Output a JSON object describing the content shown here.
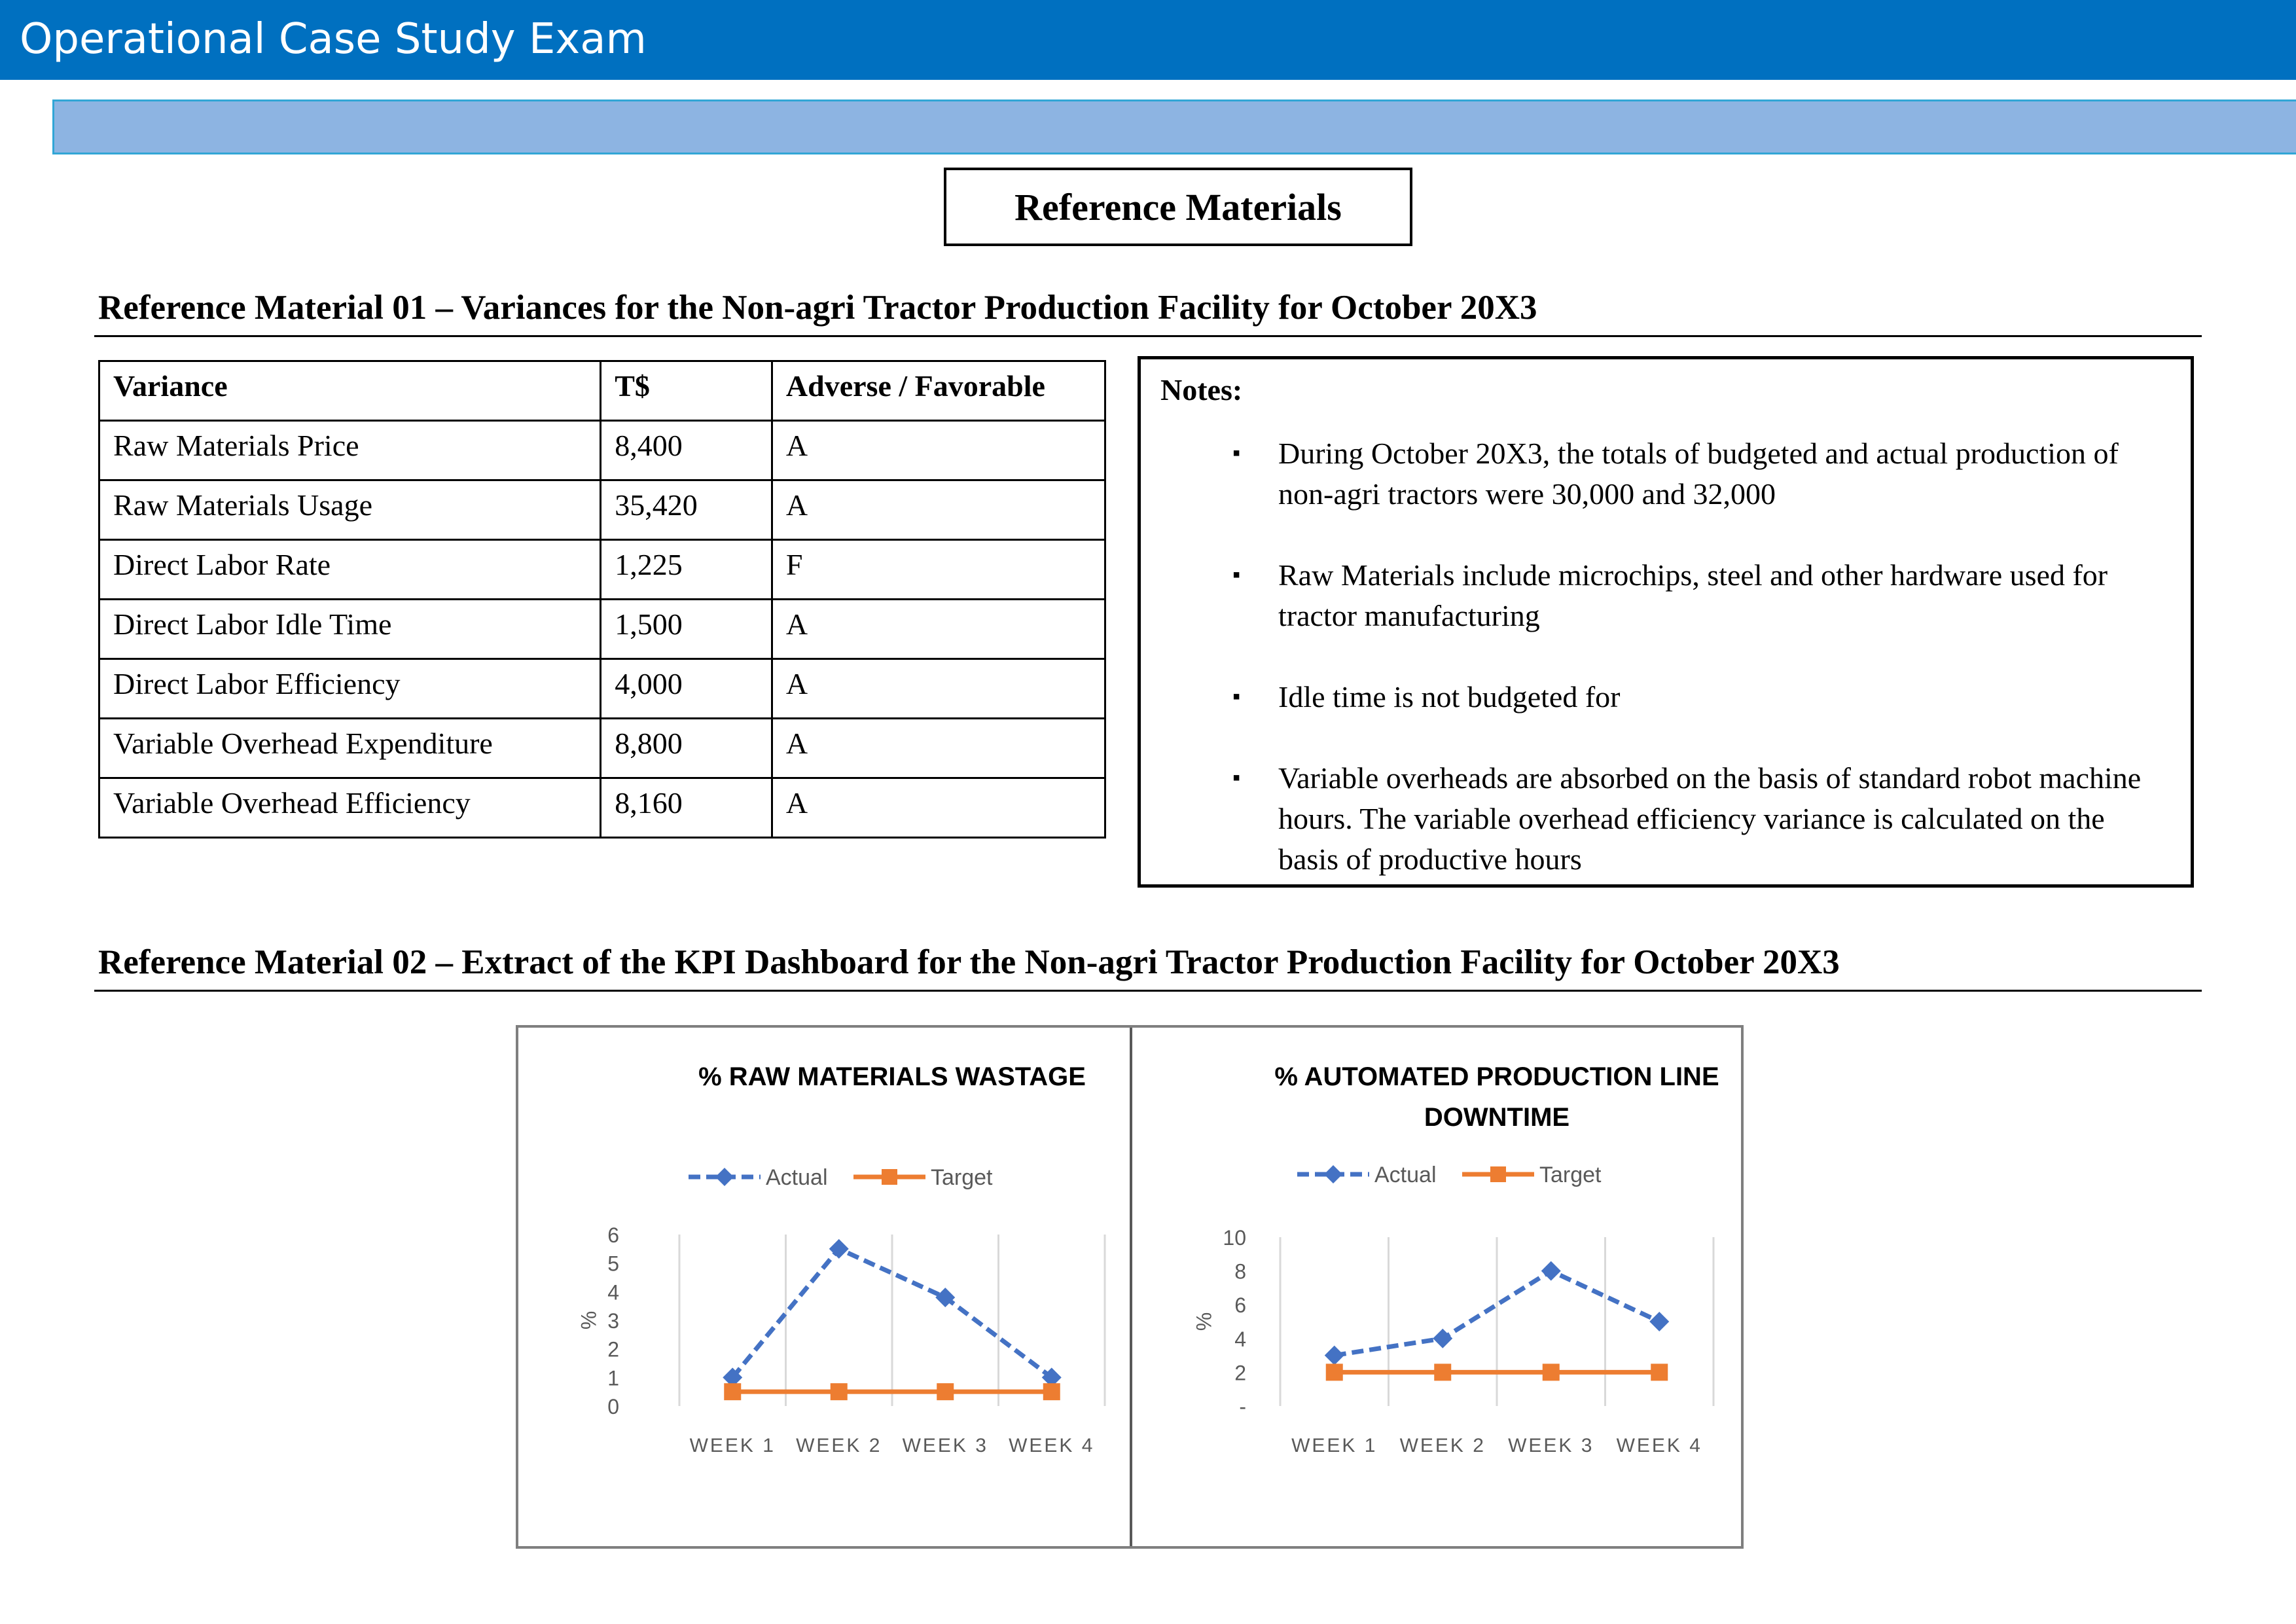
{
  "header": {
    "title": "Operational Case Study Exam"
  },
  "reference_box": {
    "label": "Reference Materials"
  },
  "section1": {
    "heading": "Reference Material 01 – Variances for the Non-agri Tractor Production Facility for October 20X3",
    "table": {
      "headers": [
        "Variance",
        "T$",
        "Adverse / Favorable"
      ],
      "rows": [
        [
          "Raw Materials Price",
          "8,400",
          "A"
        ],
        [
          "Raw Materials Usage",
          "35,420",
          "A"
        ],
        [
          "Direct Labor Rate",
          "1,225",
          "F"
        ],
        [
          "Direct Labor Idle Time",
          "1,500",
          "A"
        ],
        [
          "Direct Labor Efficiency",
          "4,000",
          "A"
        ],
        [
          "Variable Overhead Expenditure",
          "8,800",
          "A"
        ],
        [
          "Variable Overhead Efficiency",
          "8,160",
          "A"
        ]
      ]
    },
    "notes": {
      "title": "Notes:",
      "bullet": "▪",
      "items": [
        "During October 20X3, the totals of budgeted and actual production of non-agri tractors were 30,000 and 32,000",
        "Raw Materials include microchips, steel and other hardware used for tractor manufacturing",
        "Idle time is not budgeted for",
        "Variable overheads are absorbed on the basis of standard robot machine hours. The variable overhead efficiency variance is calculated on the basis of productive hours"
      ]
    }
  },
  "section2": {
    "heading": "Reference Material 02 – Extract of the KPI Dashboard for the Non-agri Tractor Production Facility for October 20X3"
  },
  "chart_data": [
    {
      "type": "line",
      "title": "% RAW MATERIALS WASTAGE",
      "xlabel": "",
      "ylabel": "%",
      "categories": [
        "WEEK 1",
        "WEEK 2",
        "WEEK 3",
        "WEEK 4"
      ],
      "y_ticks": [
        "0",
        "1",
        "2",
        "3",
        "4",
        "5",
        "6"
      ],
      "ylim": [
        0,
        6
      ],
      "grid": "vertical",
      "legend": "top",
      "series": [
        {
          "name": "Actual",
          "values": [
            1,
            5.5,
            3.8,
            1
          ],
          "color": "#4472c4",
          "style": "dashed",
          "marker": "diamond"
        },
        {
          "name": "Target",
          "values": [
            0.5,
            0.5,
            0.5,
            0.5
          ],
          "color": "#ed7d31",
          "style": "solid",
          "marker": "square"
        }
      ]
    },
    {
      "type": "line",
      "title": "% AUTOMATED PRODUCTION LINE DOWNTIME",
      "title_lines": [
        "% AUTOMATED PRODUCTION LINE",
        "DOWNTIME"
      ],
      "xlabel": "",
      "ylabel": "%",
      "categories": [
        "WEEK 1",
        "WEEK 2",
        "WEEK 3",
        "WEEK 4"
      ],
      "y_ticks": [
        "-",
        "2",
        "4",
        "6",
        "8",
        "10"
      ],
      "ylim": [
        0,
        10
      ],
      "grid": "vertical",
      "legend": "top",
      "series": [
        {
          "name": "Actual",
          "values": [
            3,
            4,
            8,
            5
          ],
          "color": "#4472c4",
          "style": "dashed",
          "marker": "diamond"
        },
        {
          "name": "Target",
          "values": [
            2,
            2,
            2,
            2
          ],
          "color": "#ed7d31",
          "style": "solid",
          "marker": "square"
        }
      ]
    }
  ]
}
